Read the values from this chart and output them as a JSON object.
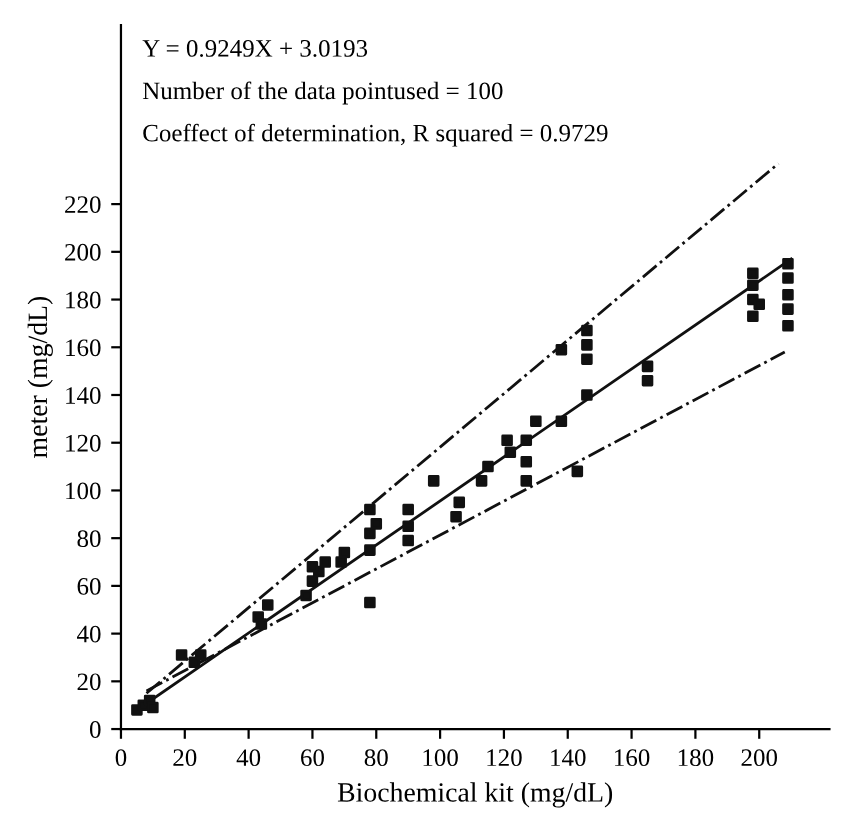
{
  "chart_data": {
    "type": "scatter",
    "xlabel": "Biochemical kit (mg/dL)",
    "ylabel": "meter (mg/dL)",
    "xlim": [
      0,
      222
    ],
    "ylim": [
      0,
      295
    ],
    "xticks": [
      0,
      20,
      40,
      60,
      80,
      100,
      120,
      140,
      160,
      180,
      200
    ],
    "yticks": [
      0,
      20,
      40,
      60,
      80,
      100,
      120,
      140,
      160,
      180,
      200,
      220
    ],
    "grid": false,
    "legend": false,
    "annotations": [
      "Y = 0.9249X + 3.0193",
      "Number of the data pointused = 100",
      "Coeffect of determination, R squared = 0.9729"
    ],
    "series": [
      {
        "marker": "square",
        "color": "#111111",
        "x": [
          5,
          7,
          9,
          10,
          19,
          25,
          23,
          43,
          46,
          44,
          58,
          60,
          62,
          64,
          60,
          69,
          70,
          78,
          78,
          78,
          78,
          80,
          90,
          90,
          90,
          98,
          105,
          106,
          113,
          115,
          121,
          122,
          127,
          127,
          127,
          130,
          138,
          138,
          143,
          146,
          146,
          146,
          146,
          165,
          165,
          198,
          198,
          198,
          198,
          200,
          209,
          209,
          209,
          209,
          209
        ],
        "values": [
          8,
          10,
          12,
          9,
          31,
          31,
          28,
          47,
          52,
          44,
          56,
          62,
          66,
          70,
          68,
          70,
          74,
          53,
          75,
          82,
          92,
          86,
          79,
          85,
          92,
          104,
          89,
          95,
          104,
          110,
          121,
          116,
          104,
          112,
          121,
          129,
          129,
          159,
          108,
          155,
          161,
          167,
          140,
          146,
          152,
          173,
          180,
          186,
          191,
          178,
          169,
          176,
          182,
          189,
          195
        ]
      },
      {
        "type": "line",
        "color": "#111111",
        "line_style": "solid",
        "marker": "none",
        "x": [
          5,
          210
        ],
        "values": [
          8,
          197
        ]
      },
      {
        "type": "line",
        "color": "#111111",
        "line_style": "dashdot",
        "marker": "none",
        "x": [
          8,
          208
        ],
        "values": [
          16,
          158
        ]
      },
      {
        "type": "line",
        "color": "#111111",
        "line_style": "dashdot",
        "marker": "none",
        "x": [
          8,
          206
        ],
        "values": [
          15,
          237
        ]
      }
    ]
  }
}
